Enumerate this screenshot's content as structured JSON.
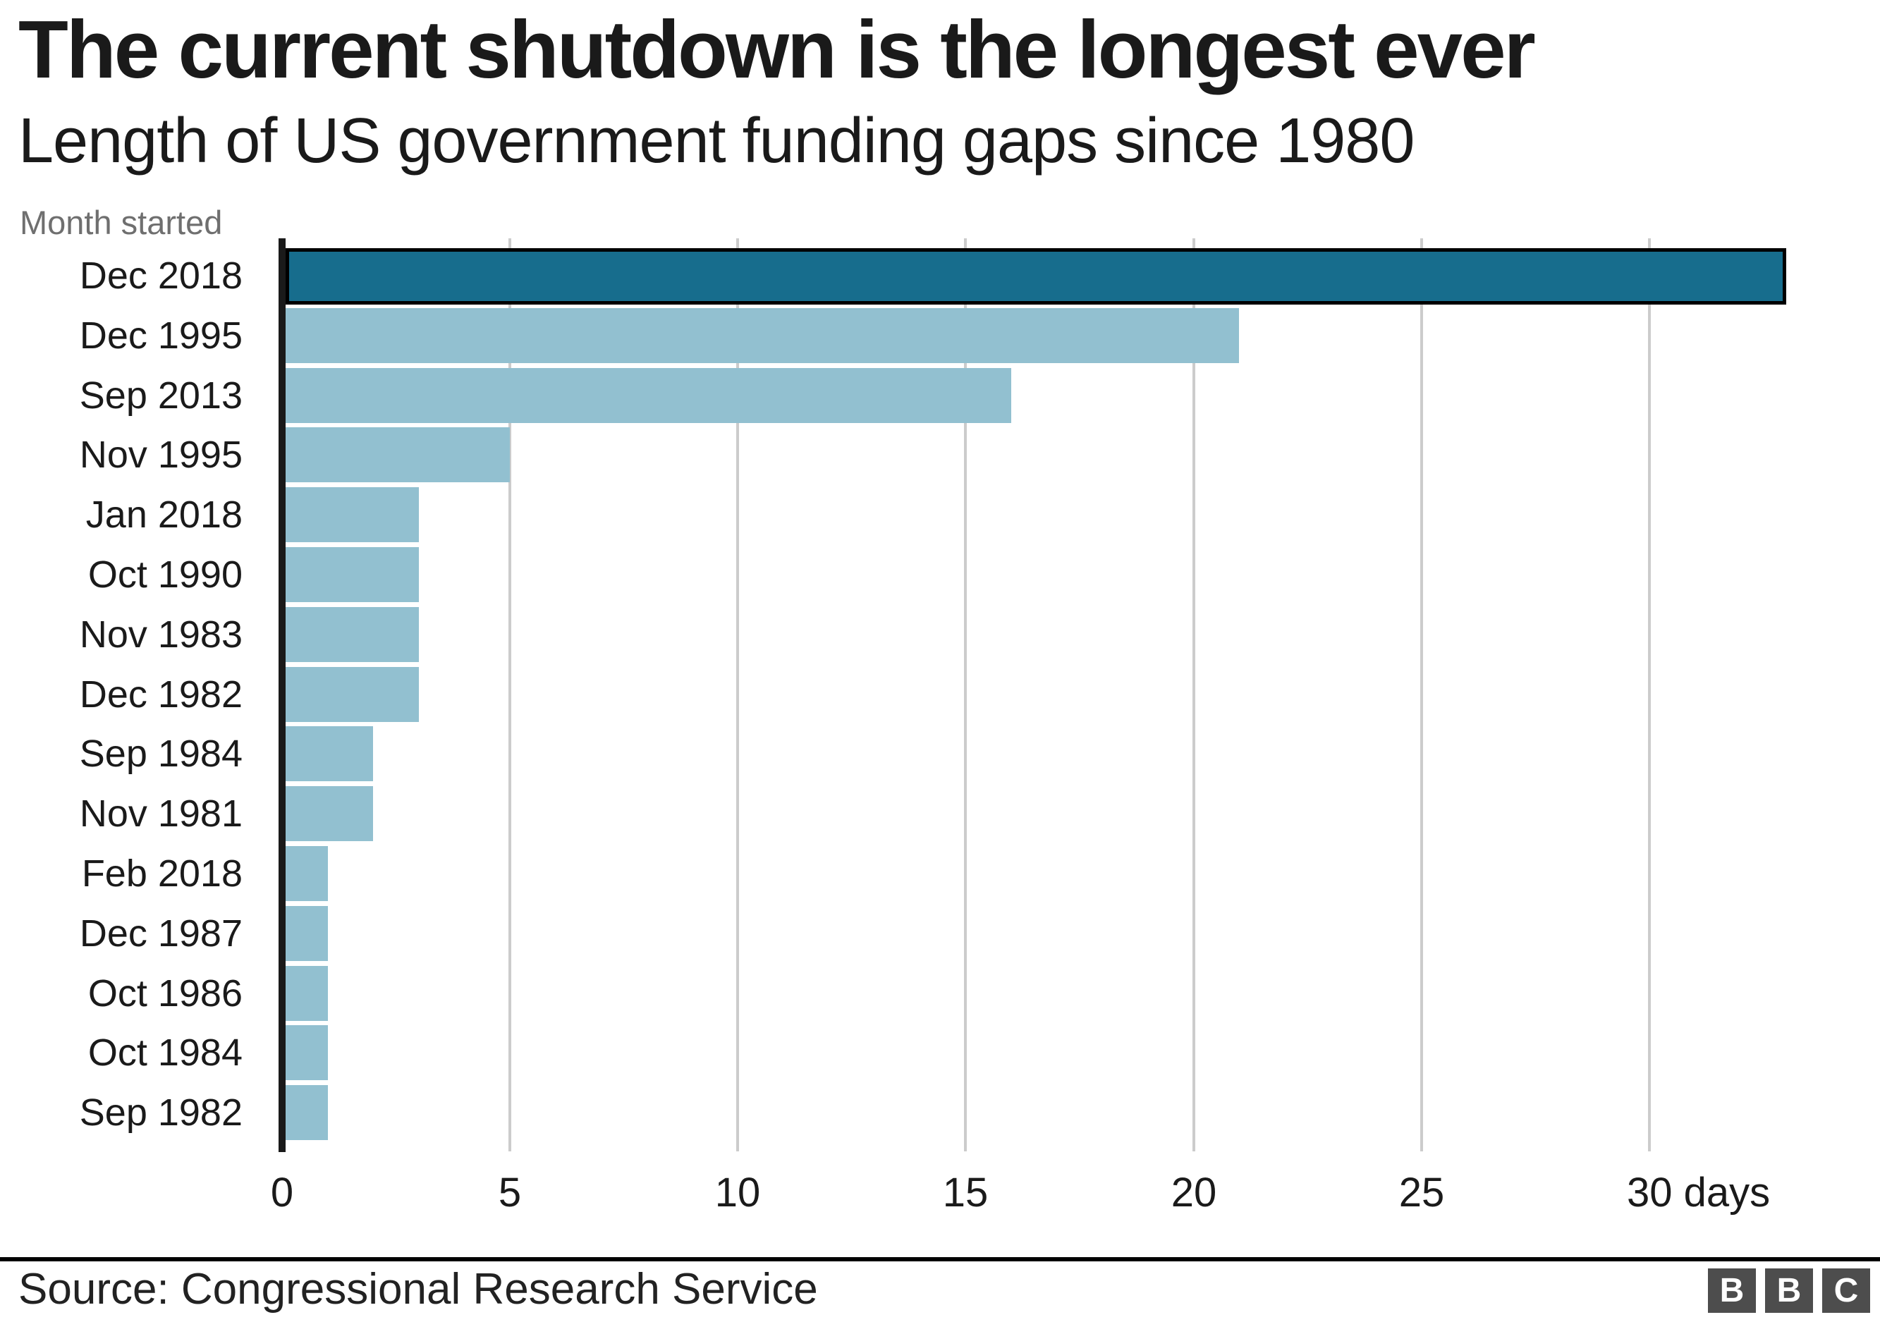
{
  "title": "The current shutdown is the longest ever",
  "subtitle": "Length of US government funding gaps since 1980",
  "y_axis_note": "Month started",
  "source": "Source: Congressional Research Service",
  "logo_letters": [
    "B",
    "B",
    "C"
  ],
  "colors": {
    "highlight_bar": "#176d8d",
    "bar": "#92c0d0",
    "bar_outline": "#000000",
    "axis_line": "#1a1a1a",
    "gridline": "#cccccc",
    "text": "#1a1a1a",
    "muted_text": "#6f6f6f",
    "separator": "#000000",
    "logo_square": "#4d4d4d",
    "logo_letter": "#ffffff"
  },
  "chart_data": {
    "type": "bar",
    "orientation": "horizontal",
    "title": "The current shutdown is the longest ever",
    "subtitle": "Length of US government funding gaps since 1980",
    "xlabel": "days",
    "ylabel": "Month started",
    "categories": [
      "Dec 2018",
      "Dec 1995",
      "Sep 2013",
      "Nov 1995",
      "Jan 2018",
      "Oct 1990",
      "Nov 1983",
      "Dec 1982",
      "Sep 1984",
      "Nov 1981",
      "Feb 2018",
      "Dec 1987",
      "Oct 1986",
      "Oct 1984",
      "Sep 1982"
    ],
    "values": [
      33,
      21,
      16,
      5,
      3,
      3,
      3,
      3,
      2,
      2,
      1,
      1,
      1,
      1,
      1
    ],
    "highlight_index": 0,
    "xlim": [
      0,
      33.5
    ],
    "grid": true,
    "legend": null,
    "x_ticks": [
      {
        "d": 0,
        "label": "0"
      },
      {
        "d": 5,
        "label": "5"
      },
      {
        "d": 10,
        "label": "10"
      },
      {
        "d": 15,
        "label": "15"
      },
      {
        "d": 20,
        "label": "20"
      },
      {
        "d": 25,
        "label": "25"
      },
      {
        "d": 30,
        "label": "30 days",
        "align": "number"
      }
    ]
  }
}
